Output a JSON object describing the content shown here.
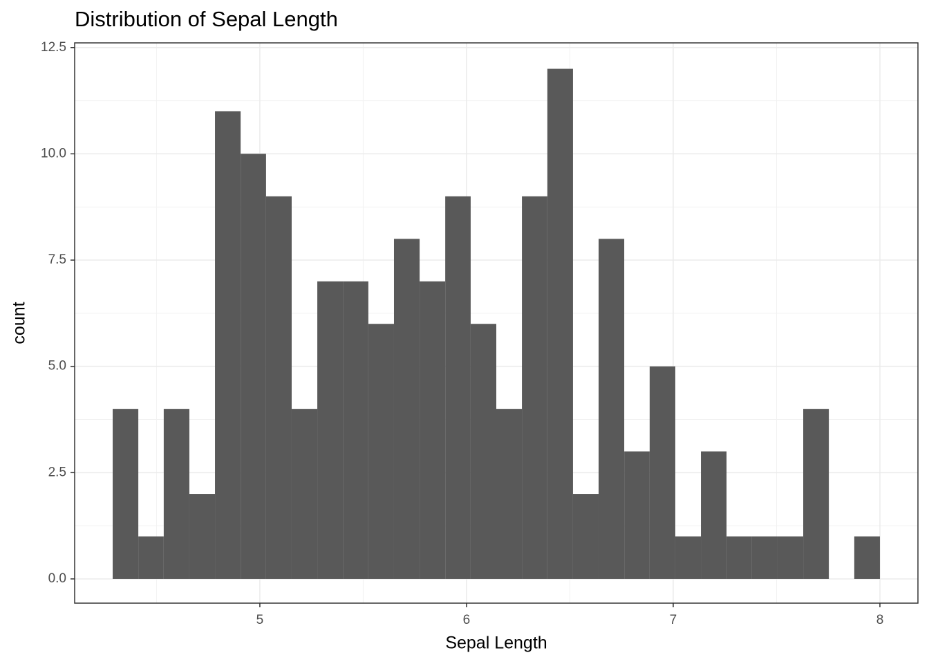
{
  "chart_data": {
    "type": "histogram",
    "title": "Distribution of Sepal Length",
    "x_label": "Sepal Length",
    "y_label": "count",
    "bins": [
      4.288,
      4.412,
      4.535,
      4.659,
      4.783,
      4.907,
      5.03,
      5.154,
      5.278,
      5.402,
      5.525,
      5.649,
      5.773,
      5.897,
      6.02,
      6.144,
      6.268,
      6.391,
      6.515,
      6.639,
      6.763,
      6.886,
      7.01,
      7.134,
      7.258,
      7.381,
      7.505,
      7.629,
      7.753,
      7.876,
      8.0
    ],
    "values": [
      4,
      1,
      4,
      2,
      11,
      10,
      9,
      4,
      7,
      7,
      6,
      8,
      7,
      9,
      6,
      4,
      9,
      12,
      2,
      8,
      3,
      5,
      1,
      3,
      1,
      1,
      1,
      4,
      0,
      1
    ],
    "color": "#595959",
    "xlim": [
      4.104,
      8.184
    ],
    "xticks": [
      5,
      6,
      7,
      8
    ],
    "ylim": [
      -0.57,
      12.61
    ],
    "yticks": [
      {
        "value": 0,
        "label": "0.0"
      },
      2.5,
      {
        "value": 5,
        "label": "5.0"
      },
      7.5,
      {
        "value": 10,
        "label": "10.0"
      },
      12.5
    ],
    "x_minor_ticks": [
      4.5,
      5.5,
      6.5,
      7.5
    ],
    "y_minor_ticks": [
      1.25,
      3.75,
      6.25,
      8.75,
      11.25
    ],
    "grid": true
  }
}
